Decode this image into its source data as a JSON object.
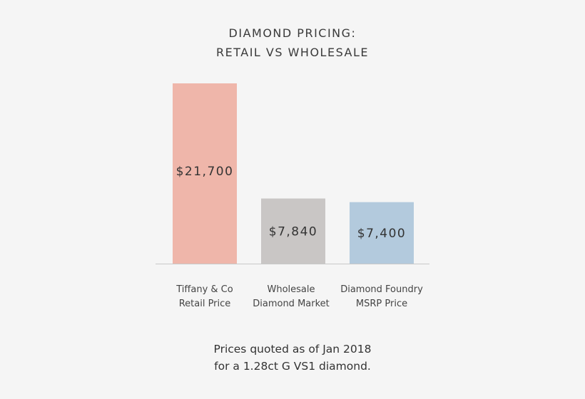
{
  "chart_data": {
    "type": "bar",
    "title_lines": [
      "DIAMOND PRICING:",
      "RETAIL VS WHOLESALE"
    ],
    "categories": [
      [
        "Tiffany & Co",
        "Retail Price"
      ],
      [
        "Wholesale",
        "Diamond Market"
      ],
      [
        "Diamond Foundry",
        "MSRP Price"
      ]
    ],
    "values": [
      21700,
      7840,
      7400
    ],
    "data_labels": [
      "$21,700",
      "$7,840",
      "$7,400"
    ],
    "colors": [
      "#efb6aa",
      "#c9c6c5",
      "#b3cadd"
    ],
    "xlabel": "",
    "ylabel": "",
    "ylim": [
      0,
      21700
    ],
    "grid": false
  },
  "footnote": [
    "Prices quoted as of Jan 2018",
    "for a 1.28ct G VS1 diamond."
  ]
}
